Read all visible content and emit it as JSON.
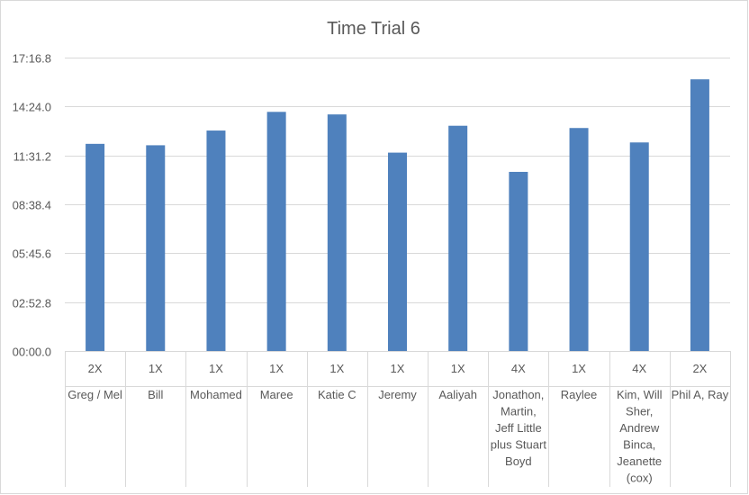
{
  "chart_data": {
    "type": "bar",
    "title": "Time Trial 6",
    "xlabel": "",
    "ylabel": "",
    "grid": true,
    "legend": "none",
    "bar_color": "#4f81bd",
    "y_unit": "minutes:seconds",
    "ylim_seconds": [
      0,
      1036.8
    ],
    "y_ticks": [
      "00:00.0",
      "02:52.8",
      "05:45.6",
      "08:38.4",
      "11:31.2",
      "14:24.0",
      "17:16.8"
    ],
    "y_tick_seconds": [
      0,
      172.8,
      345.6,
      518.4,
      691.2,
      864,
      1036.8
    ],
    "categories": [
      {
        "group": "2X",
        "lines": [
          "Greg / Mel"
        ]
      },
      {
        "group": "1X",
        "lines": [
          "Bill"
        ]
      },
      {
        "group": "1X",
        "lines": [
          "Mohamed"
        ]
      },
      {
        "group": "1X",
        "lines": [
          "Maree"
        ]
      },
      {
        "group": "1X",
        "lines": [
          "Katie C"
        ]
      },
      {
        "group": "1X",
        "lines": [
          "Jeremy"
        ]
      },
      {
        "group": "1X",
        "lines": [
          "Aaliyah"
        ]
      },
      {
        "group": "4X",
        "lines": [
          "Jonathon,",
          "Martin,",
          "Jeff Little",
          "plus Stuart",
          "Boyd"
        ]
      },
      {
        "group": "1X",
        "lines": [
          "Raylee"
        ]
      },
      {
        "group": "4X",
        "lines": [
          "Kim, Will",
          "Sher,",
          "Andrew",
          "Binca,",
          "Jeanette",
          "(cox)"
        ]
      },
      {
        "group": "2X",
        "lines": [
          "Phil A, Ray"
        ]
      }
    ],
    "values_seconds": [
      732,
      727,
      779,
      845,
      836,
      701,
      796,
      633,
      788,
      737,
      960
    ]
  }
}
